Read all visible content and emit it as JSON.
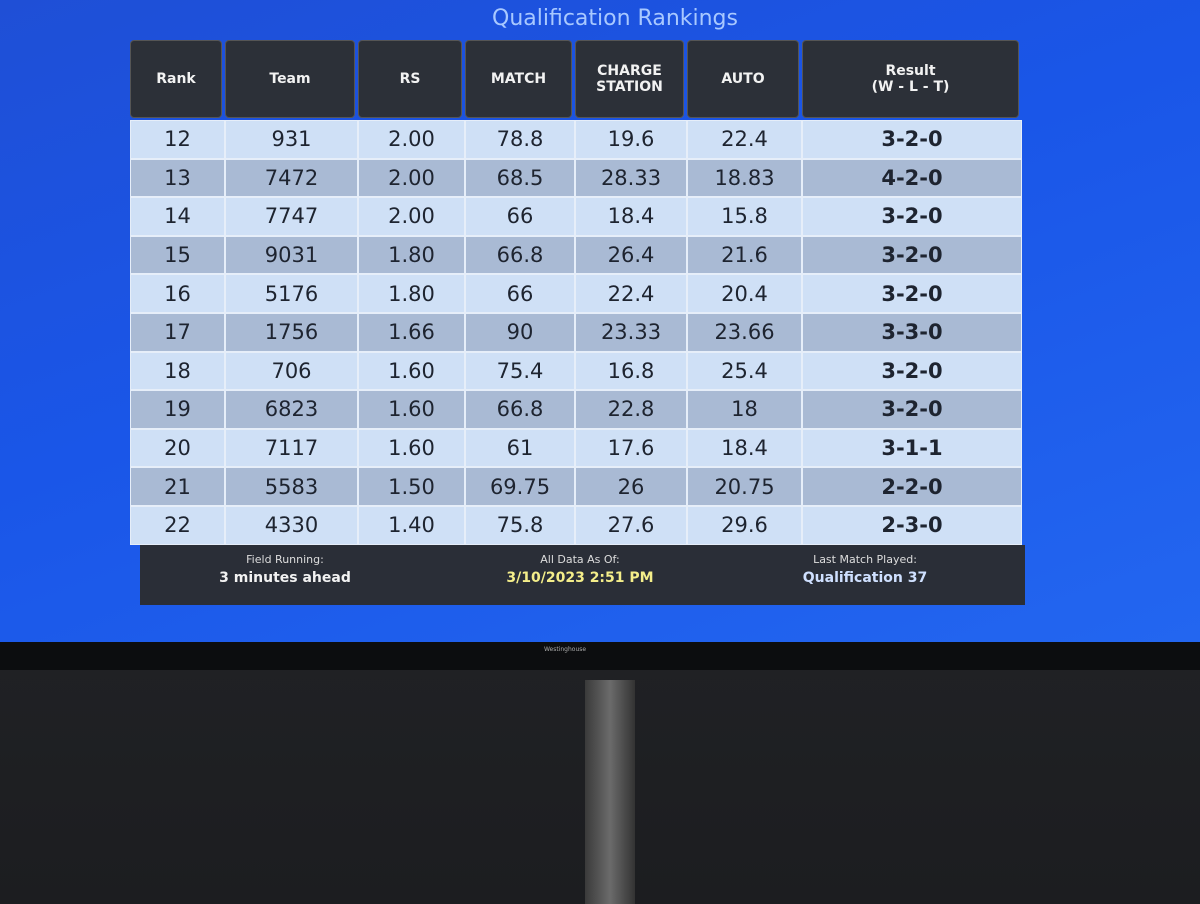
{
  "title": "Qualification Rankings",
  "table": {
    "headers": [
      [
        "Rank"
      ],
      [
        "Team"
      ],
      [
        "RS"
      ],
      [
        "MATCH"
      ],
      [
        "CHARGE",
        "STATION"
      ],
      [
        "AUTO"
      ],
      [
        "Result",
        "(W - L - T)"
      ]
    ],
    "rows": [
      [
        "12",
        "931",
        "2.00",
        "78.8",
        "19.6",
        "22.4",
        "3-2-0"
      ],
      [
        "13",
        "7472",
        "2.00",
        "68.5",
        "28.33",
        "18.83",
        "4-2-0"
      ],
      [
        "14",
        "7747",
        "2.00",
        "66",
        "18.4",
        "15.8",
        "3-2-0"
      ],
      [
        "15",
        "9031",
        "1.80",
        "66.8",
        "26.4",
        "21.6",
        "3-2-0"
      ],
      [
        "16",
        "5176",
        "1.80",
        "66",
        "22.4",
        "20.4",
        "3-2-0"
      ],
      [
        "17",
        "1756",
        "1.66",
        "90",
        "23.33",
        "23.66",
        "3-3-0"
      ],
      [
        "18",
        "706",
        "1.60",
        "75.4",
        "16.8",
        "25.4",
        "3-2-0"
      ],
      [
        "19",
        "6823",
        "1.60",
        "66.8",
        "22.8",
        "18",
        "3-2-0"
      ],
      [
        "20",
        "7117",
        "1.60",
        "61",
        "17.6",
        "18.4",
        "3-1-1"
      ],
      [
        "21",
        "5583",
        "1.50",
        "69.75",
        "26",
        "20.75",
        "2-2-0"
      ],
      [
        "22",
        "4330",
        "1.40",
        "75.8",
        "27.6",
        "29.6",
        "2-3-0"
      ]
    ]
  },
  "footer": [
    {
      "label": "Field Running:",
      "value": "3 minutes ahead"
    },
    {
      "label": "All Data As Of:",
      "value": "3/10/2023 2:51 PM"
    },
    {
      "label": "Last Match Played:",
      "value": "Qualification 37"
    }
  ],
  "bezel_brand": "Westinghouse"
}
